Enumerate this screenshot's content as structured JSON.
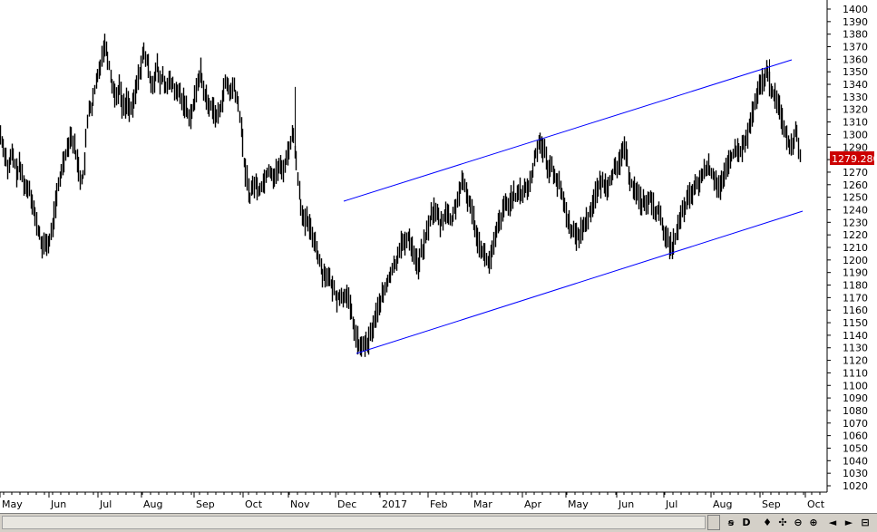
{
  "chart_data": {
    "type": "candlestick",
    "y_axis": {
      "ticks": [
        1020,
        1030,
        1040,
        1050,
        1060,
        1070,
        1080,
        1090,
        1100,
        1110,
        1120,
        1130,
        1140,
        1150,
        1160,
        1170,
        1180,
        1190,
        1200,
        1210,
        1220,
        1230,
        1240,
        1250,
        1260,
        1270,
        1280,
        1290,
        1300,
        1310,
        1320,
        1330,
        1340,
        1350,
        1360,
        1370,
        1380,
        1390,
        1400
      ],
      "range": [
        1015,
        1407
      ],
      "position": "right"
    },
    "x_axis": {
      "labels": [
        "May",
        "Jun",
        "Jul",
        "Aug",
        "Sep",
        "Oct",
        "Nov",
        "Dec",
        "2017",
        "Feb",
        "Mar",
        "Apr",
        "May",
        "Jun",
        "Jul",
        "Aug",
        "Sep",
        "Oct"
      ]
    },
    "last_price_label": "1279.280",
    "price_path": [
      [
        0,
        1300
      ],
      [
        3,
        1290
      ],
      [
        6,
        1283
      ],
      [
        9,
        1270
      ],
      [
        12,
        1285
      ],
      [
        15,
        1280
      ],
      [
        18,
        1268
      ],
      [
        21,
        1275
      ],
      [
        25,
        1265
      ],
      [
        28,
        1255
      ],
      [
        31,
        1260
      ],
      [
        35,
        1248
      ],
      [
        38,
        1235
      ],
      [
        41,
        1225
      ],
      [
        44,
        1218
      ],
      [
        47,
        1208
      ],
      [
        50,
        1215
      ],
      [
        53,
        1212
      ],
      [
        56,
        1220
      ],
      [
        59,
        1235
      ],
      [
        62,
        1250
      ],
      [
        65,
        1262
      ],
      [
        68,
        1275
      ],
      [
        71,
        1283
      ],
      [
        74,
        1290
      ],
      [
        77,
        1300
      ],
      [
        80,
        1295
      ],
      [
        83,
        1285
      ],
      [
        86,
        1275
      ],
      [
        89,
        1262
      ],
      [
        92,
        1270
      ],
      [
        95,
        1300
      ],
      [
        98,
        1325
      ],
      [
        101,
        1320
      ],
      [
        104,
        1335
      ],
      [
        107,
        1345
      ],
      [
        110,
        1355
      ],
      [
        113,
        1368
      ],
      [
        116,
        1372
      ],
      [
        119,
        1360
      ],
      [
        122,
        1345
      ],
      [
        125,
        1335
      ],
      [
        128,
        1330
      ],
      [
        131,
        1340
      ],
      [
        134,
        1325
      ],
      [
        137,
        1320
      ],
      [
        140,
        1330
      ],
      [
        143,
        1318
      ],
      [
        146,
        1322
      ],
      [
        149,
        1335
      ],
      [
        152,
        1345
      ],
      [
        155,
        1355
      ],
      [
        158,
        1365
      ],
      [
        161,
        1360
      ],
      [
        164,
        1350
      ],
      [
        167,
        1340
      ],
      [
        170,
        1345
      ],
      [
        173,
        1355
      ],
      [
        176,
        1340
      ],
      [
        179,
        1348
      ],
      [
        182,
        1335
      ],
      [
        185,
        1345
      ],
      [
        188,
        1338
      ],
      [
        191,
        1340
      ],
      [
        194,
        1330
      ],
      [
        197,
        1335
      ],
      [
        200,
        1328
      ],
      [
        203,
        1325
      ],
      [
        206,
        1318
      ],
      [
        209,
        1315
      ],
      [
        212,
        1320
      ],
      [
        215,
        1330
      ],
      [
        218,
        1345
      ],
      [
        221,
        1350
      ],
      [
        224,
        1335
      ],
      [
        227,
        1330
      ],
      [
        230,
        1320
      ],
      [
        233,
        1325
      ],
      [
        236,
        1318
      ],
      [
        239,
        1312
      ],
      [
        242,
        1320
      ],
      [
        245,
        1330
      ],
      [
        248,
        1340
      ],
      [
        251,
        1338
      ],
      [
        254,
        1332
      ],
      [
        257,
        1340
      ],
      [
        260,
        1330
      ],
      [
        263,
        1320
      ],
      [
        266,
        1305
      ],
      [
        269,
        1275
      ],
      [
        272,
        1265
      ],
      [
        275,
        1250
      ],
      [
        278,
        1258
      ],
      [
        281,
        1262
      ],
      [
        284,
        1255
      ],
      [
        287,
        1258
      ],
      [
        290,
        1262
      ],
      [
        293,
        1268
      ],
      [
        296,
        1272
      ],
      [
        299,
        1270
      ],
      [
        302,
        1265
      ],
      [
        305,
        1272
      ],
      [
        308,
        1275
      ],
      [
        311,
        1270
      ],
      [
        314,
        1278
      ],
      [
        317,
        1285
      ],
      [
        320,
        1295
      ],
      [
        323,
        1300
      ],
      [
        326,
        1280
      ],
      [
        329,
        1260
      ],
      [
        332,
        1240
      ],
      [
        335,
        1228
      ],
      [
        338,
        1232
      ],
      [
        341,
        1225
      ],
      [
        344,
        1220
      ],
      [
        347,
        1215
      ],
      [
        350,
        1205
      ],
      [
        353,
        1195
      ],
      [
        356,
        1188
      ],
      [
        359,
        1190
      ],
      [
        362,
        1185
      ],
      [
        365,
        1180
      ],
      [
        368,
        1175
      ],
      [
        371,
        1170
      ],
      [
        374,
        1172
      ],
      [
        377,
        1168
      ],
      [
        380,
        1175
      ],
      [
        383,
        1170
      ],
      [
        386,
        1160
      ],
      [
        389,
        1150
      ],
      [
        392,
        1140
      ],
      [
        395,
        1132
      ],
      [
        398,
        1128
      ],
      [
        401,
        1135
      ],
      [
        404,
        1130
      ],
      [
        407,
        1138
      ],
      [
        410,
        1145
      ],
      [
        413,
        1152
      ],
      [
        416,
        1160
      ],
      [
        419,
        1168
      ],
      [
        422,
        1172
      ],
      [
        425,
        1178
      ],
      [
        428,
        1185
      ],
      [
        431,
        1190
      ],
      [
        434,
        1195
      ],
      [
        437,
        1200
      ],
      [
        440,
        1210
      ],
      [
        443,
        1215
      ],
      [
        446,
        1210
      ],
      [
        449,
        1220
      ],
      [
        452,
        1215
      ],
      [
        455,
        1208
      ],
      [
        458,
        1200
      ],
      [
        461,
        1195
      ],
      [
        464,
        1205
      ],
      [
        467,
        1212
      ],
      [
        470,
        1220
      ],
      [
        473,
        1230
      ],
      [
        476,
        1238
      ],
      [
        479,
        1240
      ],
      [
        482,
        1235
      ],
      [
        485,
        1228
      ],
      [
        488,
        1232
      ],
      [
        491,
        1240
      ],
      [
        494,
        1235
      ],
      [
        497,
        1230
      ],
      [
        500,
        1238
      ],
      [
        503,
        1245
      ],
      [
        506,
        1255
      ],
      [
        509,
        1260
      ],
      [
        512,
        1258
      ],
      [
        515,
        1250
      ],
      [
        518,
        1245
      ],
      [
        521,
        1235
      ],
      [
        524,
        1225
      ],
      [
        527,
        1215
      ],
      [
        530,
        1210
      ],
      [
        533,
        1205
      ],
      [
        536,
        1200
      ],
      [
        539,
        1198
      ],
      [
        542,
        1205
      ],
      [
        545,
        1215
      ],
      [
        548,
        1225
      ],
      [
        551,
        1232
      ],
      [
        554,
        1238
      ],
      [
        557,
        1245
      ],
      [
        560,
        1242
      ],
      [
        563,
        1250
      ],
      [
        566,
        1252
      ],
      [
        569,
        1248
      ],
      [
        572,
        1255
      ],
      [
        575,
        1252
      ],
      [
        578,
        1258
      ],
      [
        581,
        1255
      ],
      [
        584,
        1262
      ],
      [
        587,
        1270
      ],
      [
        590,
        1285
      ],
      [
        593,
        1292
      ],
      [
        596,
        1295
      ],
      [
        599,
        1288
      ],
      [
        602,
        1280
      ],
      [
        605,
        1270
      ],
      [
        608,
        1275
      ],
      [
        611,
        1268
      ],
      [
        614,
        1262
      ],
      [
        617,
        1258
      ],
      [
        620,
        1250
      ],
      [
        623,
        1240
      ],
      [
        626,
        1232
      ],
      [
        629,
        1225
      ],
      [
        632,
        1222
      ],
      [
        635,
        1218
      ],
      [
        638,
        1220
      ],
      [
        641,
        1225
      ],
      [
        644,
        1228
      ],
      [
        647,
        1232
      ],
      [
        650,
        1238
      ],
      [
        653,
        1245
      ],
      [
        656,
        1252
      ],
      [
        659,
        1258
      ],
      [
        662,
        1260
      ],
      [
        665,
        1262
      ],
      [
        668,
        1258
      ],
      [
        671,
        1262
      ],
      [
        674,
        1268
      ],
      [
        677,
        1272
      ],
      [
        680,
        1270
      ],
      [
        683,
        1278
      ],
      [
        686,
        1290
      ],
      [
        689,
        1285
      ],
      [
        692,
        1275
      ],
      [
        695,
        1262
      ],
      [
        698,
        1258
      ],
      [
        701,
        1255
      ],
      [
        704,
        1250
      ],
      [
        707,
        1245
      ],
      [
        710,
        1248
      ],
      [
        713,
        1242
      ],
      [
        716,
        1250
      ],
      [
        719,
        1245
      ],
      [
        722,
        1238
      ],
      [
        725,
        1240
      ],
      [
        728,
        1232
      ],
      [
        731,
        1225
      ],
      [
        734,
        1218
      ],
      [
        737,
        1212
      ],
      [
        740,
        1210
      ],
      [
        743,
        1215
      ],
      [
        746,
        1222
      ],
      [
        749,
        1230
      ],
      [
        752,
        1238
      ],
      [
        755,
        1242
      ],
      [
        758,
        1248
      ],
      [
        761,
        1252
      ],
      [
        764,
        1255
      ],
      [
        767,
        1258
      ],
      [
        770,
        1262
      ],
      [
        773,
        1265
      ],
      [
        776,
        1270
      ],
      [
        779,
        1275
      ],
      [
        782,
        1272
      ],
      [
        785,
        1268
      ],
      [
        788,
        1265
      ],
      [
        791,
        1260
      ],
      [
        794,
        1258
      ],
      [
        797,
        1262
      ],
      [
        800,
        1270
      ],
      [
        803,
        1278
      ],
      [
        806,
        1282
      ],
      [
        809,
        1285
      ],
      [
        812,
        1288
      ],
      [
        815,
        1285
      ],
      [
        818,
        1290
      ],
      [
        821,
        1292
      ],
      [
        824,
        1300
      ],
      [
        827,
        1310
      ],
      [
        830,
        1318
      ],
      [
        833,
        1325
      ],
      [
        836,
        1335
      ],
      [
        839,
        1342
      ],
      [
        842,
        1345
      ],
      [
        845,
        1350
      ],
      [
        848,
        1340
      ],
      [
        851,
        1335
      ],
      [
        854,
        1330
      ],
      [
        857,
        1325
      ],
      [
        860,
        1318
      ],
      [
        863,
        1310
      ],
      [
        866,
        1300
      ],
      [
        869,
        1295
      ],
      [
        872,
        1290
      ],
      [
        875,
        1298
      ],
      [
        878,
        1305
      ],
      [
        881,
        1285
      ],
      [
        883,
        1280
      ]
    ]
  },
  "toolbar": {
    "buttons": [
      "►",
      "ꞩ",
      "D",
      "♦",
      "✣",
      "⊖",
      "⊕",
      "◄",
      "►",
      "⊟"
    ]
  }
}
